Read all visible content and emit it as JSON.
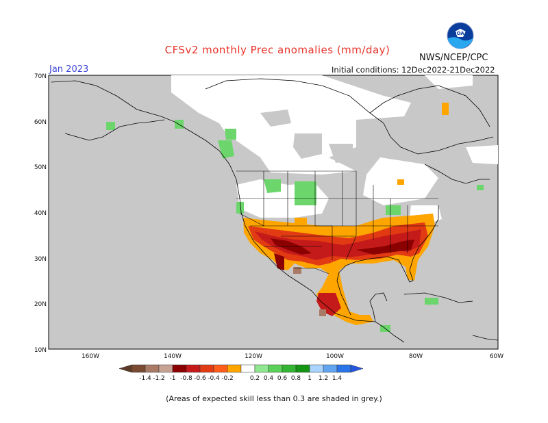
{
  "title": "CFSv2 monthly Prec anomalies (mm/day)",
  "period": "Jan 2023",
  "initial_conditions": "Initial conditions: 12Dec2022-21Dec2022",
  "agency": "NWS/NCEP/CPC",
  "logo_text": "NOAA",
  "note": "(Areas of expected skill less than 0.3 are shaded in grey.)",
  "lat_labels": [
    "70N",
    "60N",
    "50N",
    "40N",
    "30N",
    "20N",
    "10N"
  ],
  "lon_labels": [
    "160W",
    "140W",
    "120W",
    "100W",
    "80W",
    "60W"
  ],
  "legend": {
    "ticks": [
      "-1.4",
      "-1.2",
      "-1",
      "-0.8",
      "-0.6",
      "-0.4",
      "-0.2",
      "0.2",
      "0.4",
      "0.6",
      "0.8",
      "1",
      "1.2",
      "1.4"
    ],
    "colors": [
      "#7a4a33",
      "#a97a66",
      "#c7a395",
      "#8b0000",
      "#c41a1a",
      "#e23b14",
      "#ff5e1a",
      "#ffa500",
      "#ffffff",
      "#8fe88f",
      "#5ad25a",
      "#33b433",
      "#139413",
      "#a9d4ff",
      "#61a4f0",
      "#2a74ea"
    ],
    "end_colors": [
      "#5c3a28",
      "#2456e0"
    ]
  },
  "colors": {
    "no_skill": "#c8c8c8",
    "title": "#e8332a",
    "period": "#3b44d6"
  }
}
